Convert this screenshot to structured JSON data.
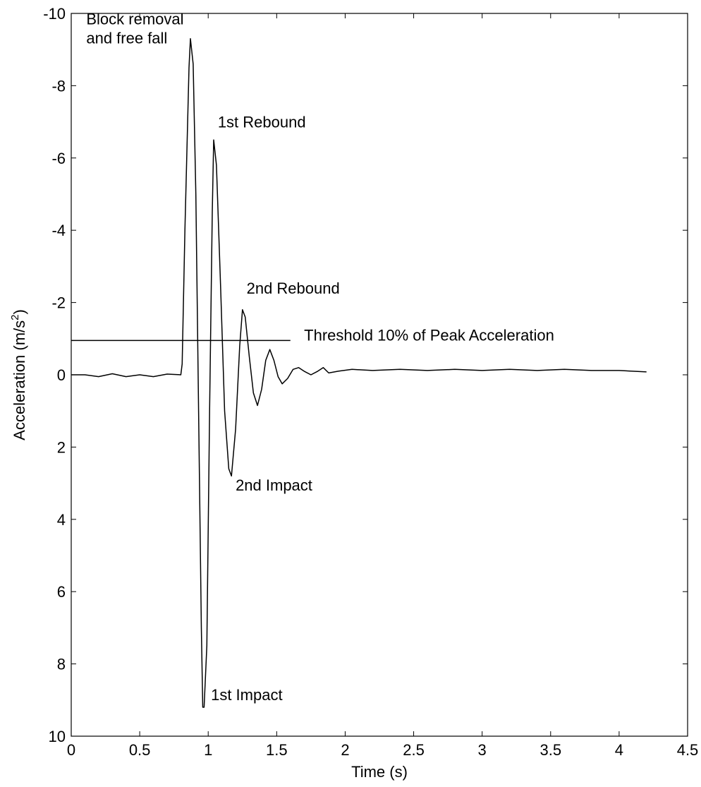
{
  "chart_data": {
    "type": "line",
    "xlabel": "Time (s)",
    "ylabel_main": "Acceleration (m/s",
    "ylabel_sup": "2",
    "ylabel_close": ")",
    "xlim": [
      0,
      4.5
    ],
    "ylim": [
      -10,
      10
    ],
    "y_axis_inverted": true,
    "grid": false,
    "x_ticks": [
      0,
      0.5,
      1,
      1.5,
      2,
      2.5,
      3,
      3.5,
      4,
      4.5
    ],
    "x_tick_labels": [
      "0",
      "0.5",
      "1",
      "1.5",
      "2",
      "2.5",
      "3",
      "3.5",
      "4",
      "4.5"
    ],
    "y_ticks": [
      -10,
      -8,
      -6,
      -4,
      -2,
      0,
      2,
      4,
      6,
      8,
      10
    ],
    "y_tick_labels": [
      "-10",
      "-8",
      "-6",
      "-4",
      "-2",
      "0",
      "2",
      "4",
      "6",
      "8",
      "10"
    ],
    "series": [
      {
        "points": [
          [
            0.0,
            0.0
          ],
          [
            0.1,
            0.0
          ],
          [
            0.2,
            0.05
          ],
          [
            0.3,
            -0.03
          ],
          [
            0.4,
            0.05
          ],
          [
            0.5,
            0.0
          ],
          [
            0.6,
            0.05
          ],
          [
            0.7,
            -0.02
          ],
          [
            0.8,
            0.0
          ],
          [
            0.81,
            -0.3
          ],
          [
            0.83,
            -4.0
          ],
          [
            0.86,
            -8.5
          ],
          [
            0.87,
            -9.3
          ],
          [
            0.89,
            -8.6
          ],
          [
            0.91,
            -5.0
          ],
          [
            0.93,
            1.0
          ],
          [
            0.95,
            7.0
          ],
          [
            0.96,
            9.2
          ],
          [
            0.97,
            9.2
          ],
          [
            0.99,
            7.5
          ],
          [
            1.01,
            1.0
          ],
          [
            1.03,
            -4.5
          ],
          [
            1.04,
            -6.5
          ],
          [
            1.06,
            -5.8
          ],
          [
            1.09,
            -2.5
          ],
          [
            1.12,
            1.0
          ],
          [
            1.15,
            2.6
          ],
          [
            1.17,
            2.8
          ],
          [
            1.2,
            1.5
          ],
          [
            1.23,
            -0.8
          ],
          [
            1.25,
            -1.8
          ],
          [
            1.27,
            -1.6
          ],
          [
            1.3,
            -0.5
          ],
          [
            1.33,
            0.5
          ],
          [
            1.36,
            0.85
          ],
          [
            1.39,
            0.4
          ],
          [
            1.42,
            -0.4
          ],
          [
            1.45,
            -0.7
          ],
          [
            1.48,
            -0.4
          ],
          [
            1.51,
            0.05
          ],
          [
            1.54,
            0.25
          ],
          [
            1.58,
            0.1
          ],
          [
            1.62,
            -0.15
          ],
          [
            1.66,
            -0.2
          ],
          [
            1.7,
            -0.1
          ],
          [
            1.75,
            0.0
          ],
          [
            1.8,
            -0.1
          ],
          [
            1.84,
            -0.2
          ],
          [
            1.88,
            -0.05
          ],
          [
            1.95,
            -0.1
          ],
          [
            2.05,
            -0.15
          ],
          [
            2.2,
            -0.12
          ],
          [
            2.4,
            -0.15
          ],
          [
            2.6,
            -0.12
          ],
          [
            2.8,
            -0.15
          ],
          [
            3.0,
            -0.12
          ],
          [
            3.2,
            -0.15
          ],
          [
            3.4,
            -0.12
          ],
          [
            3.6,
            -0.15
          ],
          [
            3.8,
            -0.12
          ],
          [
            4.0,
            -0.12
          ],
          [
            4.2,
            -0.08
          ]
        ]
      }
    ],
    "threshold": {
      "x_start": 0,
      "x_end": 1.6,
      "y": -0.95
    },
    "annotations": [
      {
        "lines": [
          "Block removal",
          "and free fall"
        ],
        "x": 0.11,
        "y": -9.7
      },
      {
        "lines": [
          "1st Rebound"
        ],
        "x": 1.07,
        "y": -6.85
      },
      {
        "lines": [
          "2nd Rebound"
        ],
        "x": 1.28,
        "y": -2.25
      },
      {
        "lines": [
          "Threshold 10% of Peak Acceleration"
        ],
        "x": 1.7,
        "y": -0.95
      },
      {
        "lines": [
          "2nd Impact"
        ],
        "x": 1.2,
        "y": 3.2
      },
      {
        "lines": [
          "1st Impact"
        ],
        "x": 1.02,
        "y": 9.0
      }
    ],
    "colors": {
      "line": "#000000",
      "axes": "#000000",
      "background": "#ffffff"
    }
  }
}
